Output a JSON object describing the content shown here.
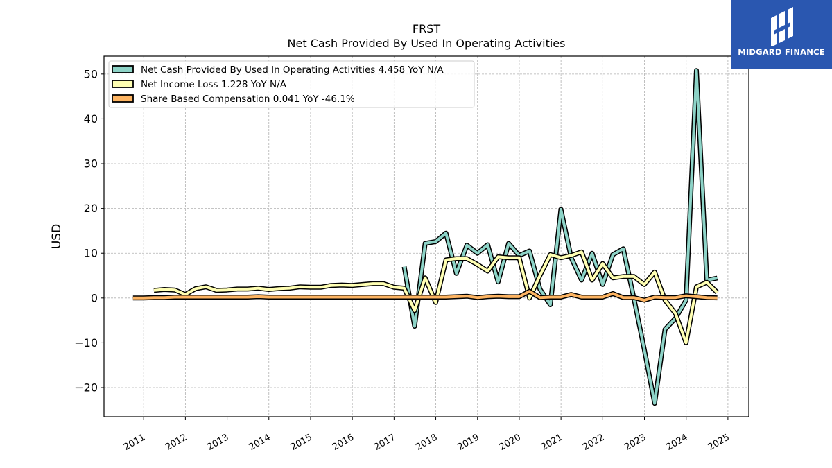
{
  "brand": {
    "name": "MIDGARD FINANCE",
    "color": "#2a57b0"
  },
  "chart_data": {
    "type": "line",
    "title": "FRST",
    "subtitle": "Net Cash Provided By Used In Operating Activities",
    "ylabel": "USD",
    "xlabel": "",
    "ylim": [
      -26.5,
      54
    ],
    "xlim": [
      2010.05,
      2025.5
    ],
    "yticks": [
      -20,
      -10,
      0,
      10,
      20,
      30,
      40,
      50
    ],
    "xticks": [
      "2011",
      "2012",
      "2013",
      "2014",
      "2015",
      "2016",
      "2017",
      "2018",
      "2019",
      "2020",
      "2021",
      "2022",
      "2023",
      "2024",
      "2025"
    ],
    "grid": true,
    "legend_position": "top-left",
    "series": [
      {
        "name": "Net Cash Provided By Used In Operating Activities  4.458 YoY N/A",
        "color": "#8dd3c7",
        "x": [
          "2017-03-31",
          "2017-06-30",
          "2017-09-30",
          "2017-12-31",
          "2018-03-31",
          "2018-06-30",
          "2018-09-30",
          "2018-12-31",
          "2019-03-31",
          "2019-06-30",
          "2019-09-30",
          "2019-12-31",
          "2020-03-31",
          "2020-06-30",
          "2020-09-30",
          "2020-12-31",
          "2021-03-31",
          "2021-06-30",
          "2021-09-30",
          "2021-12-31",
          "2022-03-31",
          "2022-06-30",
          "2022-09-30",
          "2022-12-31",
          "2023-03-31",
          "2023-06-30",
          "2023-09-30",
          "2023-12-31",
          "2024-03-31",
          "2024-06-30",
          "2024-09-30"
        ],
        "y": [
          7.0,
          -6.3,
          12.2,
          12.6,
          14.5,
          5.5,
          11.8,
          10.0,
          11.9,
          3.6,
          12.2,
          9.5,
          10.5,
          2.0,
          -1.5,
          19.8,
          9.0,
          4.0,
          10.0,
          3.0,
          9.7,
          11.0,
          0.0,
          -11.5,
          -23.5,
          -7.0,
          -4.5,
          -0.5,
          50.8,
          4.0,
          4.458
        ]
      },
      {
        "name": "Net Income Loss  1.228 YoY N/A",
        "color": "#ffffb3",
        "x": [
          "2011-03-31",
          "2011-06-30",
          "2011-09-30",
          "2011-12-31",
          "2012-03-31",
          "2012-06-30",
          "2012-09-30",
          "2012-12-31",
          "2013-03-31",
          "2013-06-30",
          "2013-09-30",
          "2013-12-31",
          "2014-03-31",
          "2014-06-30",
          "2014-09-30",
          "2014-12-31",
          "2015-03-31",
          "2015-06-30",
          "2015-09-30",
          "2015-12-31",
          "2016-03-31",
          "2016-06-30",
          "2016-09-30",
          "2016-12-31",
          "2017-03-31",
          "2017-06-30",
          "2017-09-30",
          "2017-12-31",
          "2018-03-31",
          "2018-06-30",
          "2018-09-30",
          "2018-12-31",
          "2019-03-31",
          "2019-06-30",
          "2019-09-30",
          "2019-12-31",
          "2020-03-31",
          "2020-06-30",
          "2020-09-30",
          "2020-12-31",
          "2021-03-31",
          "2021-06-30",
          "2021-09-30",
          "2021-12-31",
          "2022-03-31",
          "2022-06-30",
          "2022-09-30",
          "2022-12-31",
          "2023-03-31",
          "2023-06-30",
          "2023-09-30",
          "2023-12-31",
          "2024-03-31",
          "2024-06-30",
          "2024-09-30"
        ],
        "y": [
          1.7,
          1.9,
          1.8,
          0.8,
          2.1,
          2.5,
          1.7,
          1.8,
          2.0,
          2.0,
          2.2,
          1.9,
          2.1,
          2.2,
          2.5,
          2.4,
          2.4,
          2.8,
          2.9,
          2.8,
          3.0,
          3.2,
          3.2,
          2.4,
          2.2,
          -2.8,
          4.5,
          -1.0,
          8.5,
          8.8,
          8.8,
          7.5,
          6.0,
          9.2,
          9.0,
          9.0,
          0.0,
          5.0,
          9.7,
          9.0,
          9.5,
          10.3,
          4.0,
          7.7,
          4.5,
          4.8,
          4.8,
          3.0,
          5.8,
          -0.5,
          -3.5,
          -10.0,
          2.5,
          3.5,
          1.228
        ]
      },
      {
        "name": "Share Based Compensation  0.041 YoY -46.1%",
        "color": "#fdb462",
        "x": [
          "2010-09-30",
          "2010-12-31",
          "2011-03-31",
          "2011-06-30",
          "2011-09-30",
          "2011-12-31",
          "2012-03-31",
          "2012-06-30",
          "2012-09-30",
          "2012-12-31",
          "2013-03-31",
          "2013-06-30",
          "2013-09-30",
          "2013-12-31",
          "2014-03-31",
          "2014-06-30",
          "2014-09-30",
          "2014-12-31",
          "2015-03-31",
          "2015-06-30",
          "2015-09-30",
          "2015-12-31",
          "2016-03-31",
          "2016-06-30",
          "2016-09-30",
          "2016-12-31",
          "2017-03-31",
          "2017-06-30",
          "2017-09-30",
          "2017-12-31",
          "2018-03-31",
          "2018-06-30",
          "2018-09-30",
          "2018-12-31",
          "2019-03-31",
          "2019-06-30",
          "2019-09-30",
          "2019-12-31",
          "2020-03-31",
          "2020-06-30",
          "2020-09-30",
          "2020-12-31",
          "2021-03-31",
          "2021-06-30",
          "2021-09-30",
          "2021-12-31",
          "2022-03-31",
          "2022-06-30",
          "2022-09-30",
          "2022-12-31",
          "2023-03-31",
          "2023-06-30",
          "2023-09-30",
          "2023-12-31",
          "2024-03-31",
          "2024-06-30",
          "2024-09-30"
        ],
        "y": [
          0.0,
          0.0,
          0.1,
          0.1,
          0.2,
          0.2,
          0.2,
          0.2,
          0.2,
          0.2,
          0.2,
          0.2,
          0.3,
          0.2,
          0.2,
          0.2,
          0.2,
          0.2,
          0.2,
          0.2,
          0.2,
          0.2,
          0.2,
          0.2,
          0.2,
          0.2,
          0.2,
          0.2,
          0.2,
          0.2,
          0.2,
          0.3,
          0.4,
          0.1,
          0.3,
          0.4,
          0.3,
          0.3,
          1.5,
          0.1,
          0.2,
          0.2,
          0.8,
          0.2,
          0.2,
          0.2,
          1.0,
          0.1,
          0.1,
          -0.5,
          0.2,
          0.1,
          0.1,
          0.5,
          0.3,
          0.1,
          0.041
        ]
      }
    ]
  }
}
